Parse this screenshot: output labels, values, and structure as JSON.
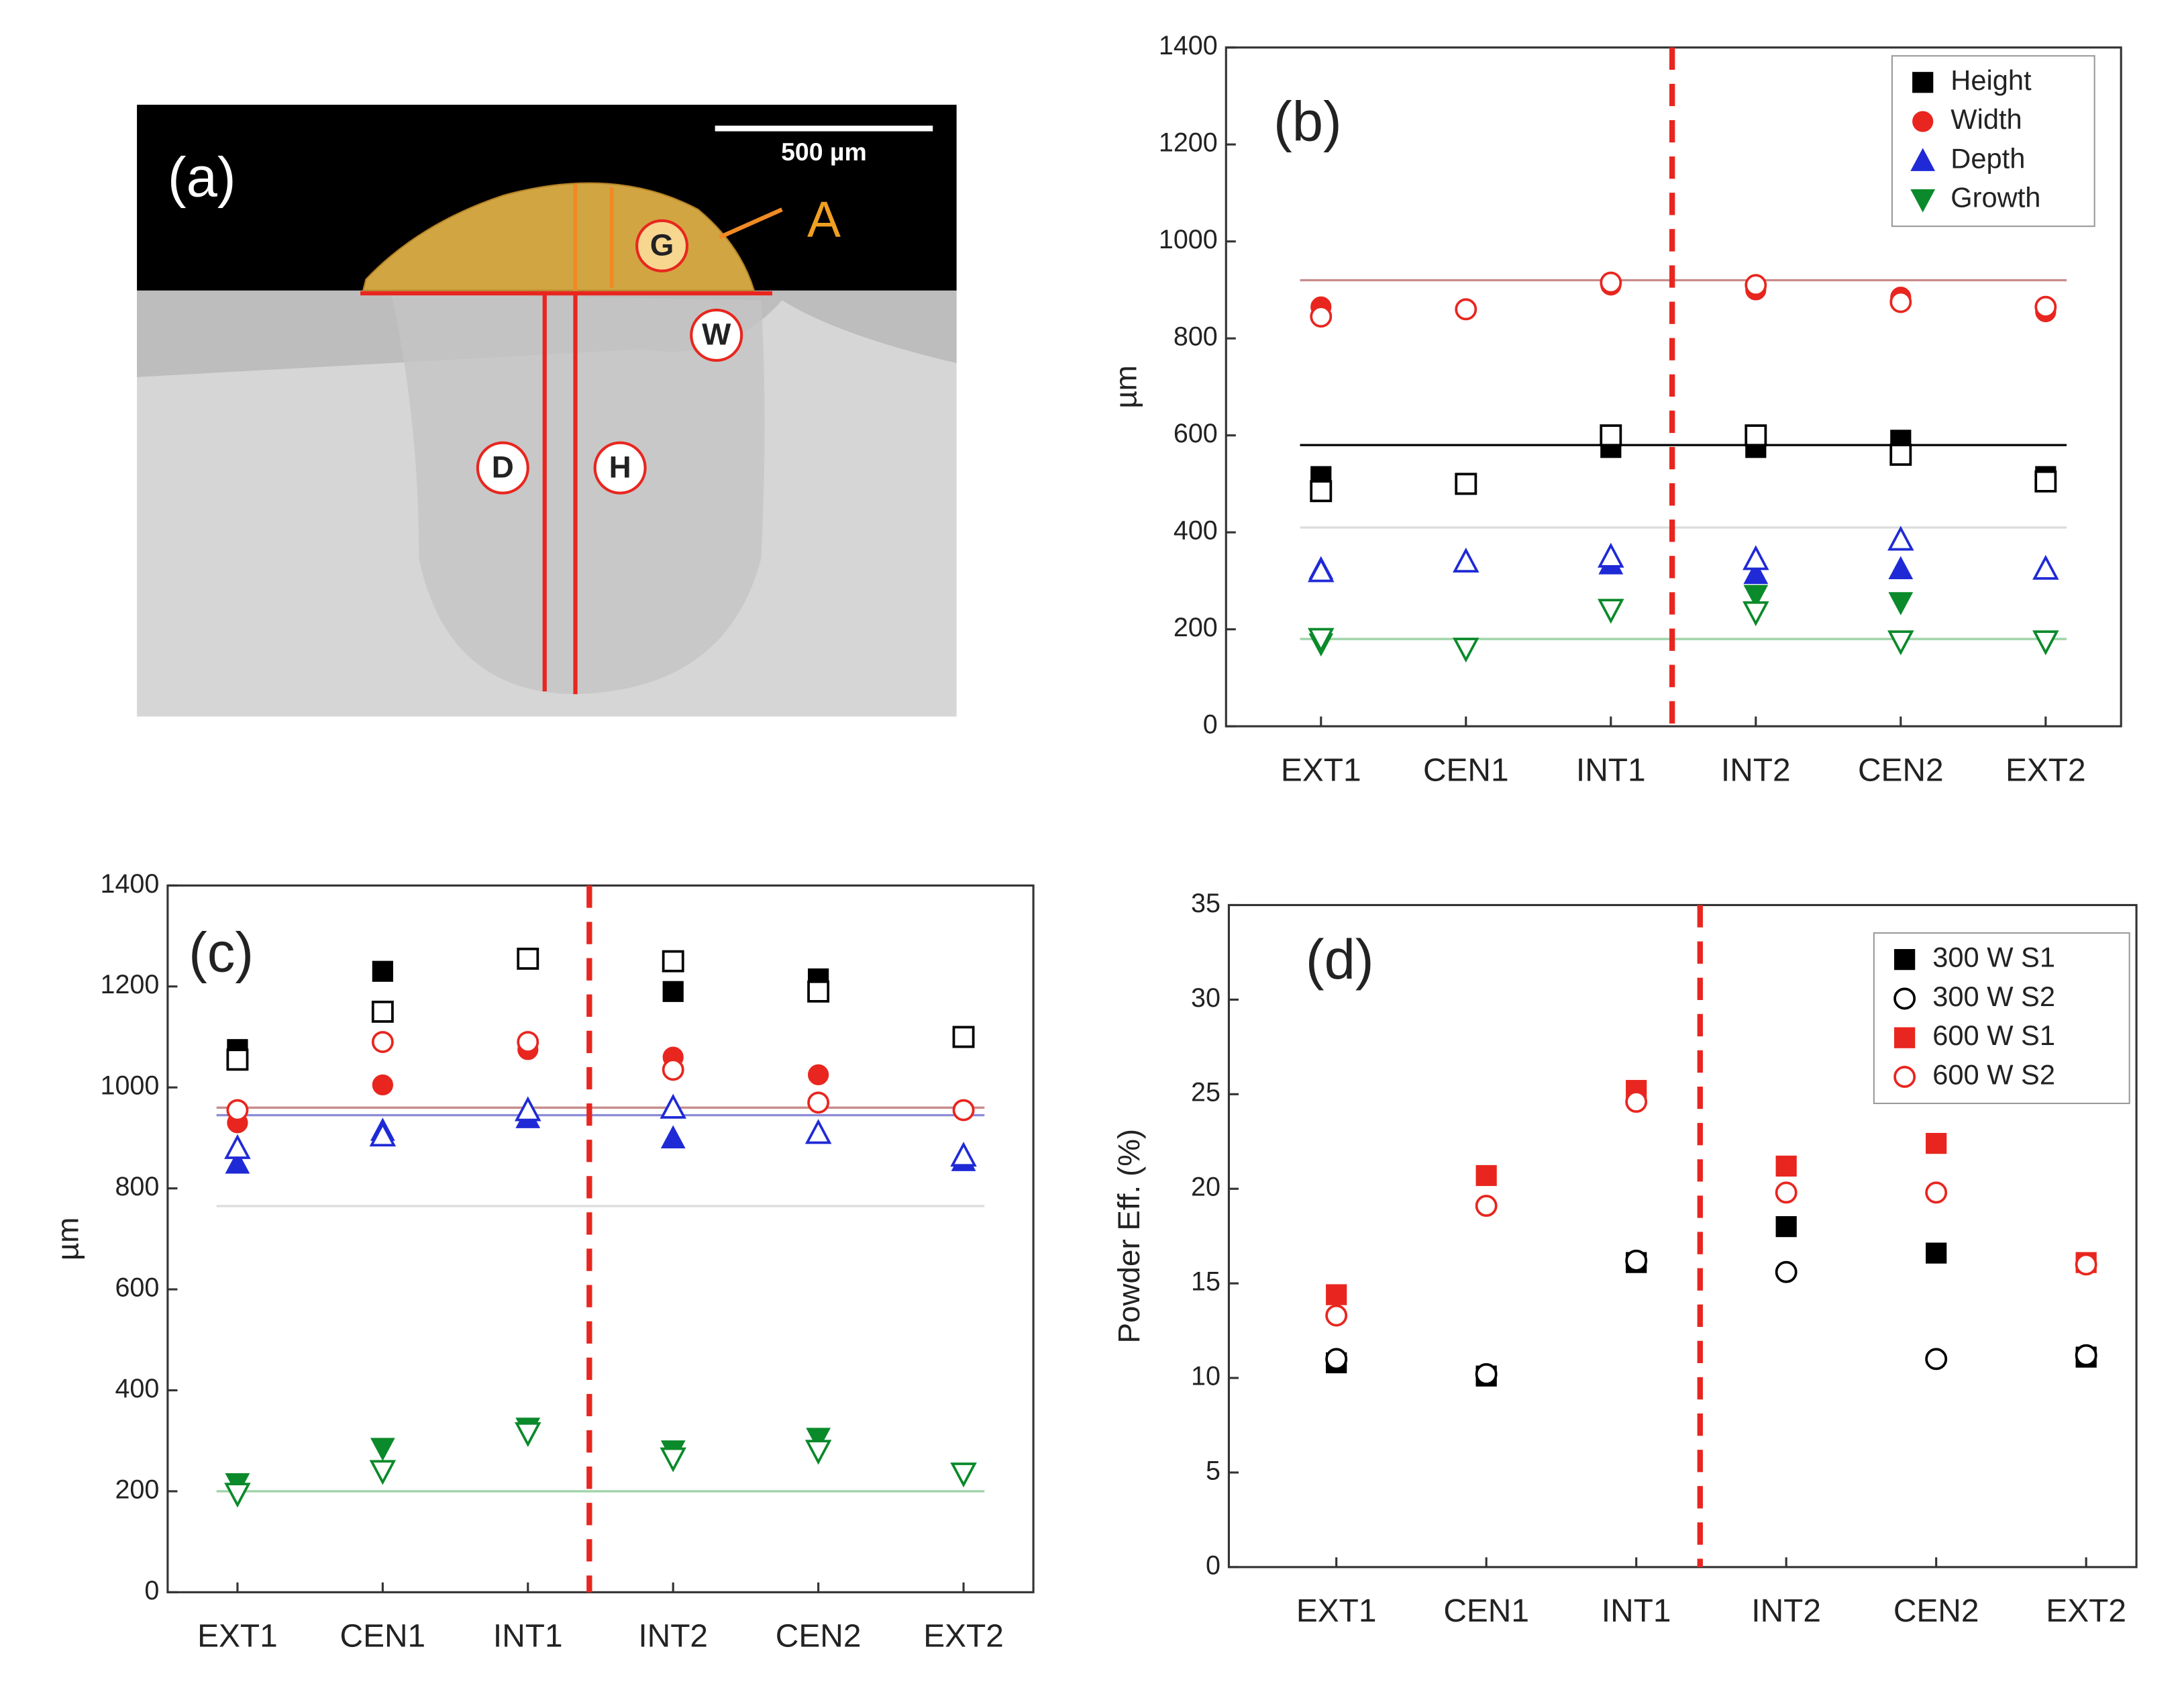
{
  "panel_a": {
    "label": "(a)",
    "scale_bar": "500 µm",
    "markers": [
      "G",
      "A",
      "W",
      "D",
      "H"
    ]
  },
  "chart_data": [
    {
      "type": "scatter",
      "panel_label": "(b)",
      "y_label": "µm",
      "categories": [
        "EXT1",
        "CEN1",
        "INT1",
        "INT2",
        "CEN2",
        "EXT2"
      ],
      "ylim": [
        0,
        1400
      ],
      "yticks": [
        0,
        200,
        400,
        600,
        800,
        1000,
        1200,
        1400
      ],
      "legend": "upper right",
      "divider_after_index": 2,
      "divider_color": "#e8261f",
      "reference_lines": [
        {
          "value": 920,
          "color": "#c98b8b"
        },
        {
          "value": 580,
          "color": "#000000"
        },
        {
          "value": 410,
          "color": "#dddddd"
        },
        {
          "value": 180,
          "color": "#9fd3a8"
        }
      ],
      "series": [
        {
          "name": "Height",
          "color": "#000000",
          "marker": "square",
          "filled": true,
          "values": [
            515,
            null,
            575,
            575,
            590,
            515
          ]
        },
        {
          "name": "Width",
          "color": "#e8261f",
          "marker": "circle",
          "filled": true,
          "values": [
            865,
            null,
            910,
            900,
            885,
            855
          ]
        },
        {
          "name": "Depth",
          "color": "#1f2ad6",
          "marker": "triangle-up",
          "filled": true,
          "values": [
            325,
            null,
            335,
            315,
            325,
            null
          ]
        },
        {
          "name": "Growth",
          "color": "#0a8a2a",
          "marker": "triangle-down",
          "filled": true,
          "values": [
            170,
            null,
            null,
            270,
            255,
            null
          ]
        },
        {
          "color": "#000000",
          "marker": "square",
          "filled": false,
          "values": [
            485,
            500,
            600,
            600,
            560,
            505
          ]
        },
        {
          "color": "#e8261f",
          "marker": "circle",
          "filled": false,
          "values": [
            845,
            860,
            915,
            910,
            875,
            865
          ]
        },
        {
          "color": "#1f2ad6",
          "marker": "triangle-up",
          "filled": false,
          "values": [
            320,
            340,
            350,
            345,
            385,
            325
          ]
        },
        {
          "color": "#0a8a2a",
          "marker": "triangle-down",
          "filled": false,
          "values": [
            180,
            160,
            240,
            235,
            175,
            175
          ]
        }
      ]
    },
    {
      "type": "scatter",
      "panel_label": "(c)",
      "y_label": "µm",
      "categories": [
        "EXT1",
        "CEN1",
        "INT1",
        "INT2",
        "CEN2",
        "EXT2"
      ],
      "ylim": [
        0,
        1400
      ],
      "yticks": [
        0,
        200,
        400,
        600,
        800,
        1000,
        1200,
        1400
      ],
      "divider_after_index": 2,
      "divider_color": "#e8261f",
      "reference_lines": [
        {
          "value": 960,
          "color": "#c98b8b"
        },
        {
          "value": 945,
          "color": "#8c8cd8"
        },
        {
          "value": 765,
          "color": "#dddddd"
        },
        {
          "value": 200,
          "color": "#9fd3a8"
        }
      ],
      "series": [
        {
          "color": "#000000",
          "marker": "square",
          "filled": true,
          "values": [
            1075,
            1230,
            null,
            1190,
            1215,
            null
          ]
        },
        {
          "color": "#e8261f",
          "marker": "circle",
          "filled": true,
          "values": [
            930,
            1005,
            1075,
            1060,
            1025,
            null
          ]
        },
        {
          "color": "#1f2ad6",
          "marker": "triangle-up",
          "filled": true,
          "values": [
            850,
            915,
            940,
            900,
            null,
            855
          ]
        },
        {
          "color": "#0a8a2a",
          "marker": "triangle-down",
          "filled": true,
          "values": [
            215,
            285,
            325,
            280,
            305,
            null
          ]
        },
        {
          "color": "#000000",
          "marker": "square",
          "filled": false,
          "values": [
            1055,
            1150,
            1255,
            1250,
            1190,
            1100
          ]
        },
        {
          "color": "#e8261f",
          "marker": "circle",
          "filled": false,
          "values": [
            955,
            1090,
            1090,
            1035,
            970,
            955
          ]
        },
        {
          "color": "#1f2ad6",
          "marker": "triangle-up",
          "filled": false,
          "values": [
            880,
            905,
            955,
            960,
            910,
            865
          ]
        },
        {
          "color": "#0a8a2a",
          "marker": "triangle-down",
          "filled": false,
          "values": [
            195,
            240,
            315,
            265,
            280,
            235
          ]
        }
      ]
    },
    {
      "type": "scatter",
      "panel_label": "(d)",
      "y_label": "Powder Eff. (%)",
      "categories": [
        "EXT1",
        "CEN1",
        "INT1",
        "INT2",
        "CEN2",
        "EXT2"
      ],
      "ylim": [
        0,
        35
      ],
      "yticks": [
        0,
        5,
        10,
        15,
        20,
        25,
        30,
        35
      ],
      "legend": "upper right",
      "divider_after_index": 2,
      "divider_color": "#e8261f",
      "series": [
        {
          "name": "300 W S1",
          "color": "#000000",
          "marker": "square",
          "filled": true,
          "values": [
            10.8,
            10.1,
            16.1,
            18.0,
            16.6,
            11.1
          ]
        },
        {
          "name": "300 W S2",
          "color": "#000000",
          "marker": "circle",
          "filled": false,
          "values": [
            11.0,
            10.2,
            16.2,
            15.6,
            11.0,
            11.2
          ]
        },
        {
          "name": "600 W S1",
          "color": "#e8261f",
          "marker": "square",
          "filled": true,
          "values": [
            14.4,
            20.7,
            25.2,
            21.2,
            22.4,
            16.1
          ]
        },
        {
          "name": "600 W S2",
          "color": "#e8261f",
          "marker": "circle",
          "filled": false,
          "values": [
            13.3,
            19.1,
            24.6,
            19.8,
            19.8,
            16.0
          ]
        }
      ]
    }
  ]
}
